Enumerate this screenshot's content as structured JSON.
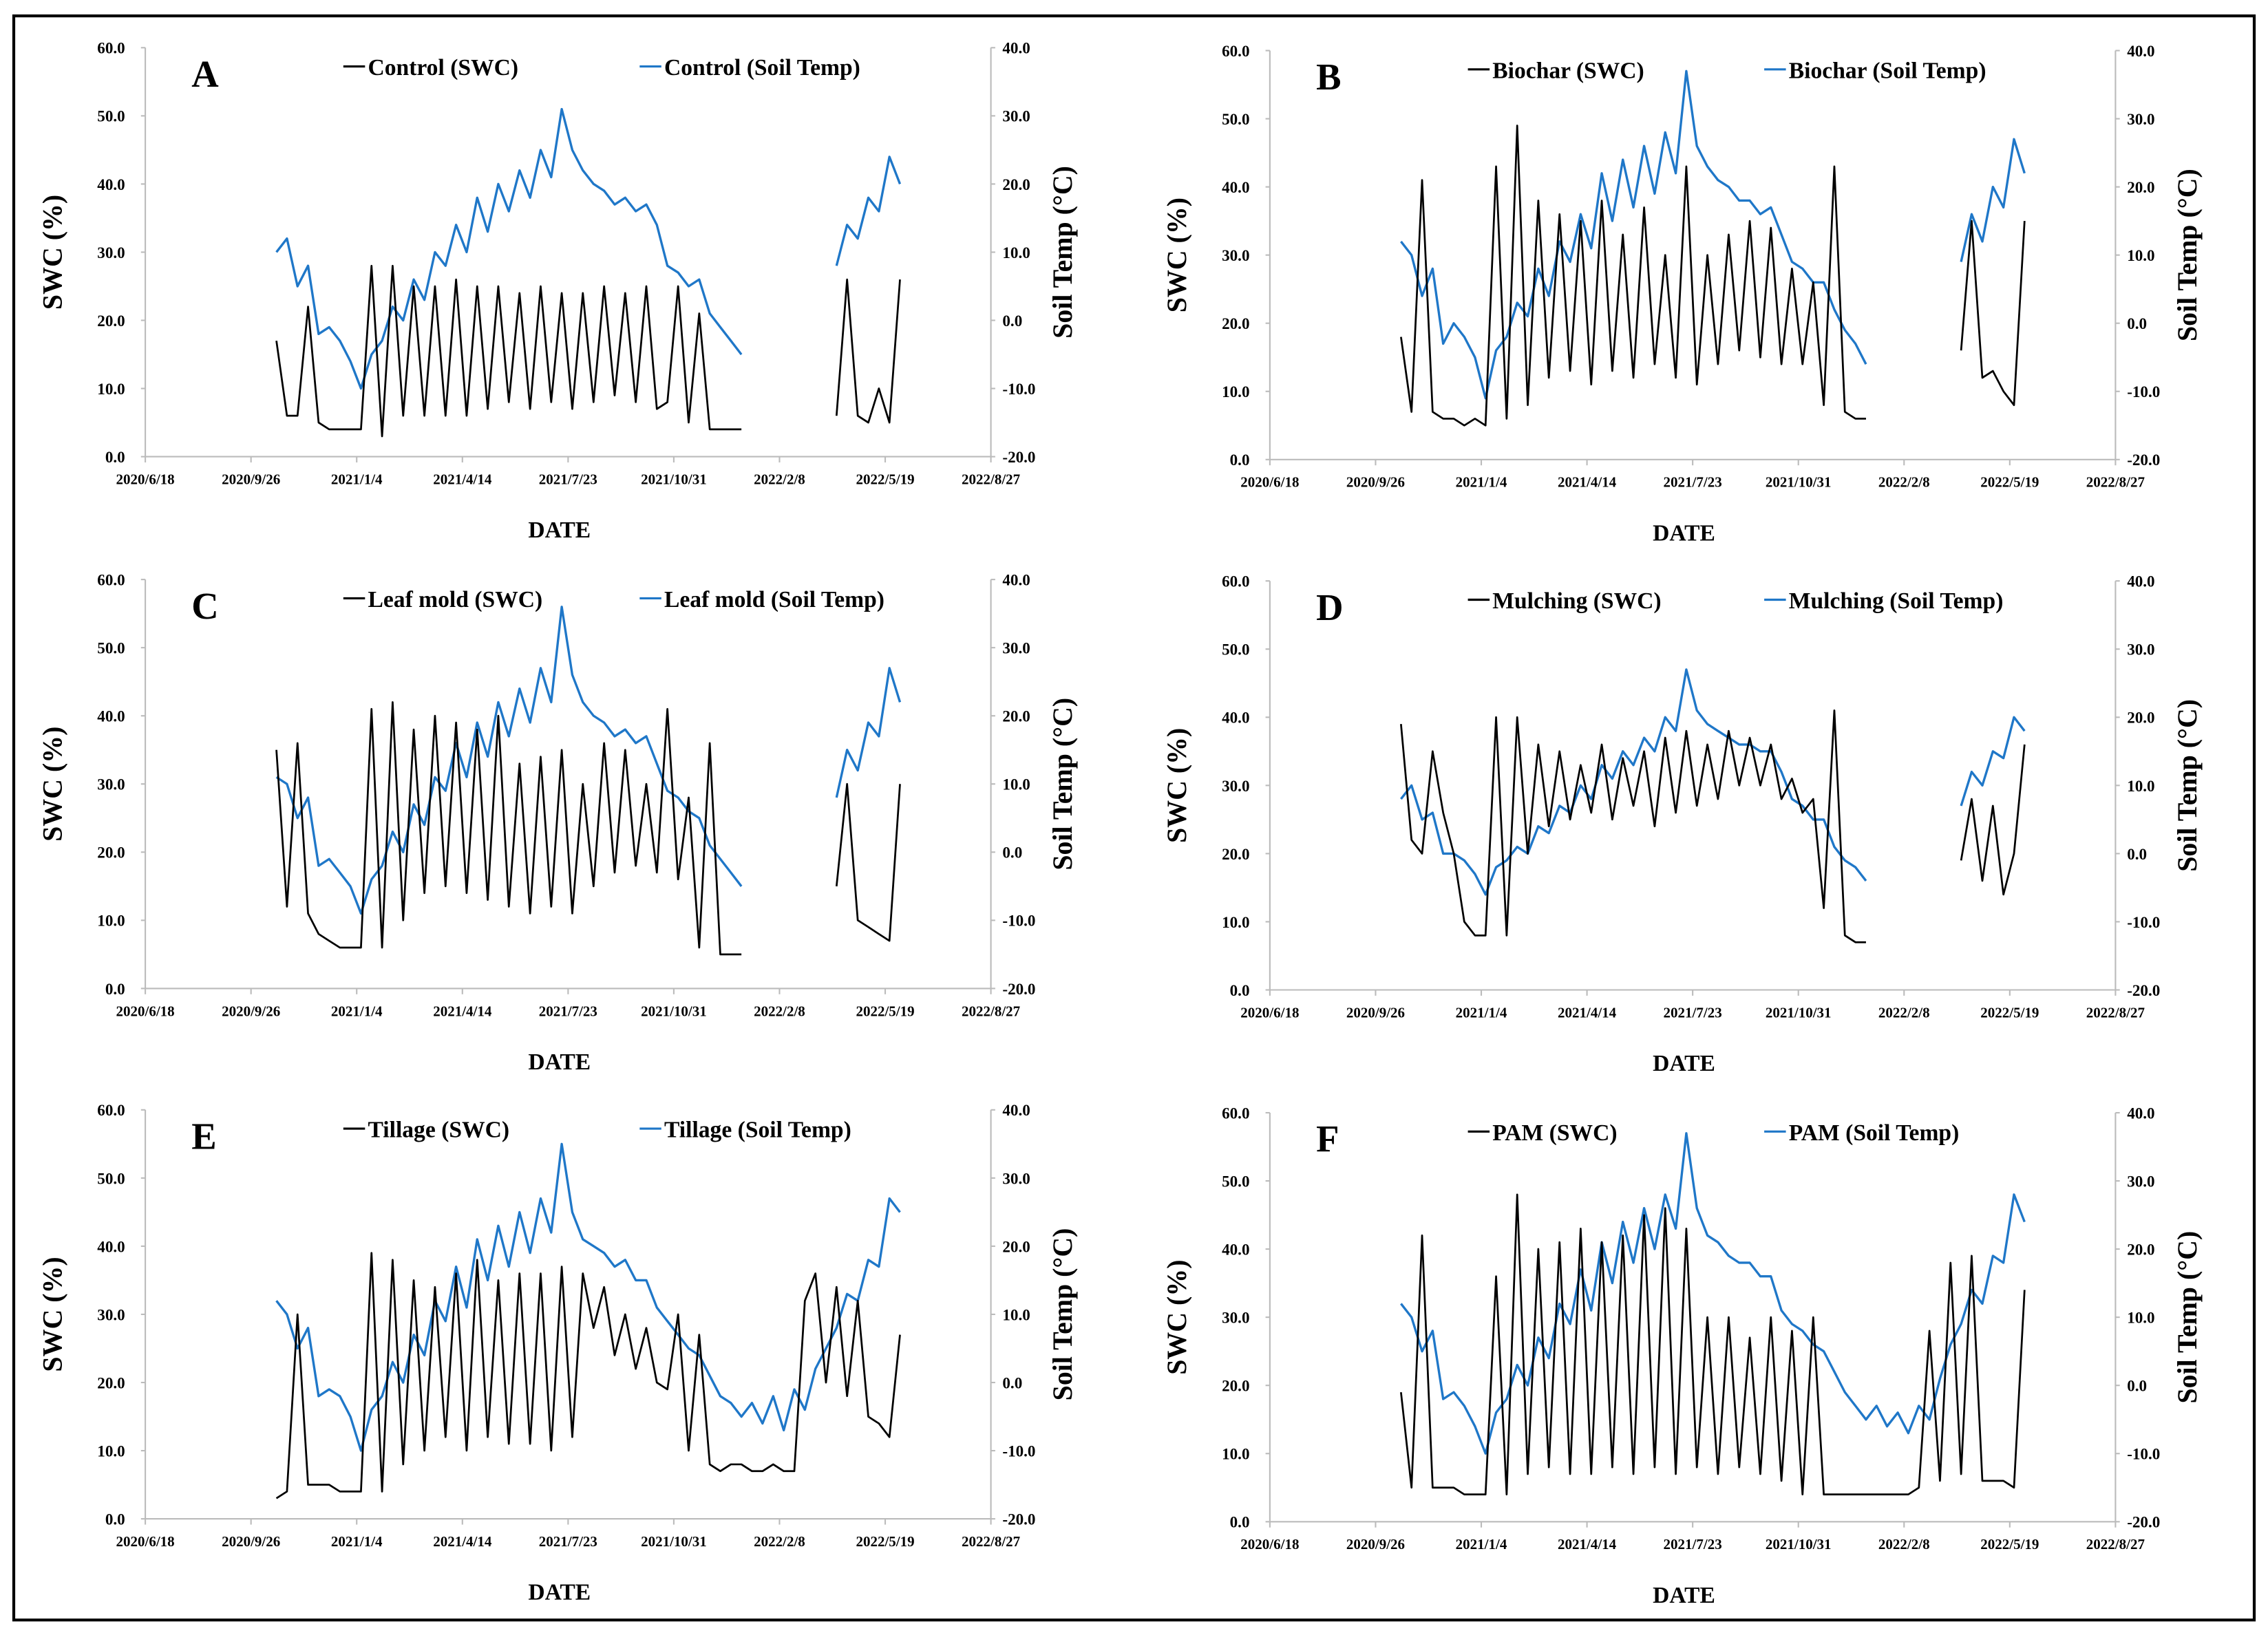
{
  "figure": {
    "x_tick_labels": [
      "2020/6/18",
      "2020/9/26",
      "2021/1/4",
      "2021/4/14",
      "2021/7/23",
      "2021/10/31",
      "2022/2/8",
      "2022/5/19",
      "2022/8/27"
    ],
    "left_y_tick_labels": [
      "0.0",
      "10.0",
      "20.0",
      "30.0",
      "40.0",
      "50.0",
      "60.0"
    ],
    "right_y_tick_labels": [
      "-20.0",
      "-10.0",
      "0.0",
      "10.0",
      "20.0",
      "30.0",
      "40.0"
    ],
    "xlabel": "DATE",
    "ylabel": "SWC (%)",
    "y2label": "Soil Temp  (°C)",
    "colors": {
      "swc": "#000000",
      "temp": "#1f77c8"
    }
  },
  "chart_data": [
    {
      "type": "line",
      "panel": "A",
      "legend": [
        "Control (SWC)",
        "Control (Soil Temp)"
      ],
      "x_unit": "days since 2020/6/18",
      "xlim": [
        0,
        800
      ],
      "ylim": [
        0,
        60
      ],
      "y2lim": [
        -20,
        40
      ],
      "x_start": 124,
      "x_step": 10,
      "swc": [
        17,
        6,
        6,
        22,
        5,
        4,
        4,
        4,
        4,
        28,
        3,
        28,
        6,
        25,
        6,
        25,
        6,
        26,
        6,
        25,
        7,
        25,
        8,
        24,
        7,
        25,
        8,
        24,
        7,
        24,
        8,
        25,
        9,
        24,
        8,
        25,
        7,
        8,
        25,
        5,
        21,
        4,
        4,
        4,
        4,
        null,
        null,
        null,
        null,
        null,
        null,
        null,
        null,
        6,
        26,
        6,
        5,
        10,
        5,
        26
      ],
      "temp": [
        10,
        12,
        5,
        8,
        -2,
        -1,
        -3,
        -6,
        -10,
        -5,
        -3,
        2,
        0,
        6,
        3,
        10,
        8,
        14,
        10,
        18,
        13,
        20,
        16,
        22,
        18,
        25,
        21,
        31,
        25,
        22,
        20,
        19,
        17,
        18,
        16,
        17,
        14,
        8,
        7,
        5,
        6,
        1,
        -1,
        -3,
        -5,
        null,
        null,
        null,
        null,
        null,
        null,
        null,
        null,
        8,
        14,
        12,
        18,
        16,
        24,
        20
      ]
    },
    {
      "type": "line",
      "panel": "B",
      "legend": [
        "Biochar (SWC)",
        "Biochar (Soil Temp)"
      ],
      "x_unit": "days since 2020/6/18",
      "xlim": [
        0,
        800
      ],
      "ylim": [
        0,
        60
      ],
      "y2lim": [
        -20,
        40
      ],
      "x_start": 124,
      "x_step": 10,
      "swc": [
        18,
        7,
        41,
        7,
        6,
        6,
        5,
        6,
        5,
        43,
        6,
        49,
        8,
        38,
        12,
        36,
        13,
        35,
        11,
        38,
        13,
        33,
        12,
        37,
        14,
        30,
        12,
        43,
        11,
        30,
        14,
        33,
        16,
        35,
        15,
        34,
        14,
        28,
        14,
        26,
        8,
        43,
        7,
        6,
        6,
        null,
        null,
        null,
        null,
        null,
        null,
        null,
        null,
        16,
        35,
        12,
        13,
        10,
        8,
        35
      ],
      "temp": [
        12,
        10,
        4,
        8,
        -3,
        0,
        -2,
        -5,
        -11,
        -4,
        -2,
        3,
        1,
        8,
        4,
        12,
        9,
        16,
        11,
        22,
        15,
        24,
        17,
        26,
        19,
        28,
        22,
        37,
        26,
        23,
        21,
        20,
        18,
        18,
        16,
        17,
        13,
        9,
        8,
        6,
        6,
        2,
        -1,
        -3,
        -6,
        null,
        null,
        null,
        null,
        null,
        null,
        null,
        null,
        9,
        16,
        12,
        20,
        17,
        27,
        22
      ]
    },
    {
      "type": "line",
      "panel": "C",
      "legend": [
        "Leaf mold (SWC)",
        "Leaf mold (Soil Temp)"
      ],
      "x_unit": "days since 2020/6/18",
      "xlim": [
        0,
        800
      ],
      "ylim": [
        0,
        60
      ],
      "y2lim": [
        -20,
        40
      ],
      "x_start": 124,
      "x_step": 10,
      "swc": [
        35,
        12,
        36,
        11,
        8,
        7,
        6,
        6,
        6,
        41,
        6,
        42,
        10,
        38,
        14,
        40,
        15,
        39,
        14,
        38,
        13,
        40,
        12,
        33,
        11,
        34,
        12,
        35,
        11,
        30,
        15,
        36,
        17,
        35,
        18,
        30,
        17,
        41,
        16,
        28,
        6,
        36,
        5,
        5,
        5,
        null,
        null,
        null,
        null,
        null,
        null,
        null,
        null,
        15,
        30,
        10,
        9,
        8,
        7,
        30
      ],
      "temp": [
        11,
        10,
        5,
        8,
        -2,
        -1,
        -3,
        -5,
        -9,
        -4,
        -2,
        3,
        0,
        7,
        4,
        11,
        9,
        16,
        11,
        19,
        14,
        22,
        17,
        24,
        19,
        27,
        22,
        36,
        26,
        22,
        20,
        19,
        17,
        18,
        16,
        17,
        13,
        9,
        8,
        6,
        5,
        1,
        -1,
        -3,
        -5,
        null,
        null,
        null,
        null,
        null,
        null,
        null,
        null,
        8,
        15,
        12,
        19,
        17,
        27,
        22
      ]
    },
    {
      "type": "line",
      "panel": "D",
      "legend": [
        "Mulching (SWC)",
        "Mulching (Soil Temp)"
      ],
      "x_unit": "days since 2020/6/18",
      "xlim": [
        0,
        800
      ],
      "ylim": [
        0,
        60
      ],
      "y2lim": [
        -20,
        40
      ],
      "x_start": 124,
      "x_step": 10,
      "swc": [
        39,
        22,
        20,
        35,
        26,
        20,
        10,
        8,
        8,
        40,
        8,
        40,
        20,
        36,
        24,
        35,
        25,
        33,
        26,
        36,
        25,
        34,
        27,
        35,
        24,
        37,
        26,
        38,
        27,
        36,
        28,
        38,
        30,
        37,
        30,
        36,
        28,
        31,
        26,
        28,
        12,
        41,
        8,
        7,
        7,
        null,
        null,
        null,
        null,
        null,
        null,
        null,
        null,
        19,
        28,
        16,
        27,
        14,
        20,
        36
      ],
      "temp": [
        8,
        10,
        5,
        6,
        0,
        0,
        -1,
        -3,
        -6,
        -2,
        -1,
        1,
        0,
        4,
        3,
        7,
        6,
        10,
        8,
        13,
        11,
        15,
        13,
        17,
        15,
        20,
        18,
        27,
        21,
        19,
        18,
        17,
        16,
        16,
        15,
        15,
        12,
        8,
        7,
        5,
        5,
        1,
        -1,
        -2,
        -4,
        null,
        null,
        null,
        null,
        null,
        null,
        null,
        null,
        7,
        12,
        10,
        15,
        14,
        20,
        18
      ]
    },
    {
      "type": "line",
      "panel": "E",
      "legend": [
        "Tillage (SWC)",
        "Tillage (Soil Temp)"
      ],
      "x_unit": "days since 2020/6/18",
      "xlim": [
        0,
        800
      ],
      "ylim": [
        0,
        60
      ],
      "y2lim": [
        -20,
        40
      ],
      "x_start": 124,
      "x_step": 10,
      "swc": [
        3,
        4,
        30,
        5,
        5,
        5,
        4,
        4,
        4,
        39,
        4,
        38,
        8,
        35,
        10,
        34,
        12,
        36,
        10,
        38,
        12,
        35,
        11,
        36,
        11,
        36,
        10,
        37,
        12,
        36,
        28,
        34,
        24,
        30,
        22,
        28,
        20,
        19,
        30,
        10,
        27,
        8,
        7,
        8,
        8,
        7,
        7,
        8,
        7,
        7,
        32,
        36,
        20,
        34,
        18,
        32,
        15,
        14,
        12,
        27
      ],
      "temp": [
        12,
        10,
        5,
        8,
        -2,
        -1,
        -2,
        -5,
        -10,
        -4,
        -2,
        3,
        0,
        7,
        4,
        12,
        9,
        17,
        11,
        21,
        15,
        23,
        17,
        25,
        19,
        27,
        22,
        35,
        25,
        21,
        20,
        19,
        17,
        18,
        15,
        15,
        11,
        9,
        7,
        5,
        4,
        1,
        -2,
        -3,
        -5,
        -3,
        -6,
        -2,
        -7,
        -1,
        -4,
        2,
        5,
        8,
        13,
        12,
        18,
        17,
        27,
        25
      ]
    },
    {
      "type": "line",
      "panel": "F",
      "legend": [
        "PAM (SWC)",
        "PAM (Soil Temp)"
      ],
      "x_unit": "days since 2020/6/18",
      "xlim": [
        0,
        800
      ],
      "ylim": [
        0,
        60
      ],
      "y2lim": [
        -20,
        40
      ],
      "x_start": 124,
      "x_step": 10,
      "swc": [
        19,
        5,
        42,
        5,
        5,
        5,
        4,
        4,
        4,
        36,
        4,
        48,
        7,
        40,
        8,
        41,
        7,
        43,
        7,
        41,
        8,
        42,
        7,
        45,
        8,
        46,
        7,
        43,
        8,
        30,
        7,
        30,
        8,
        27,
        7,
        30,
        6,
        28,
        4,
        30,
        4,
        4,
        4,
        4,
        4,
        4,
        4,
        4,
        4,
        5,
        28,
        6,
        38,
        7,
        39,
        6,
        6,
        6,
        5,
        34
      ],
      "temp": [
        12,
        10,
        5,
        8,
        -2,
        -1,
        -3,
        -6,
        -10,
        -4,
        -2,
        3,
        0,
        7,
        4,
        12,
        9,
        17,
        11,
        21,
        15,
        24,
        18,
        26,
        20,
        28,
        23,
        37,
        26,
        22,
        21,
        19,
        18,
        18,
        16,
        16,
        11,
        9,
        8,
        6,
        5,
        2,
        -1,
        -3,
        -5,
        -3,
        -6,
        -4,
        -7,
        -3,
        -5,
        1,
        6,
        9,
        14,
        12,
        19,
        18,
        28,
        24
      ]
    }
  ]
}
